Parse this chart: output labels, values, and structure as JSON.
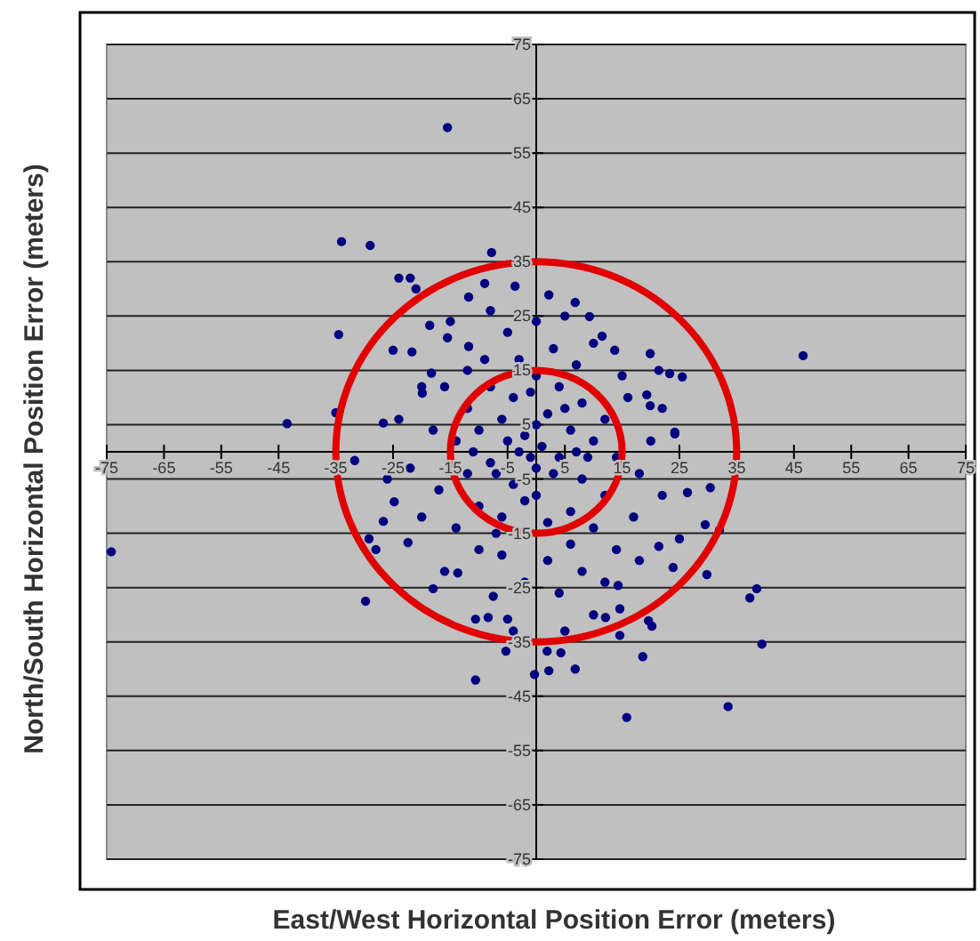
{
  "chart_data": {
    "type": "scatter",
    "xlabel": "East/West Horizontal Position Error (meters)",
    "ylabel": "North/South Horizontal Position Error (meters)",
    "xlim": [
      -75,
      75
    ],
    "ylim": [
      -75,
      75
    ],
    "xticks": [
      -75,
      -65,
      -55,
      -45,
      -35,
      -25,
      -15,
      -5,
      5,
      15,
      25,
      35,
      45,
      55,
      65,
      75
    ],
    "yticks": [
      -75,
      -65,
      -55,
      -45,
      -35,
      -25,
      -15,
      -5,
      5,
      15,
      25,
      35,
      45,
      55,
      65,
      75
    ],
    "grid": "y",
    "series": [
      {
        "color": "#000080",
        "marker": "circle",
        "x": [
          -15.5,
          -34,
          -29,
          -24,
          -22,
          -21,
          -9,
          -7.8,
          -3.7,
          -11.8,
          -18.6,
          -34.5,
          -25,
          -21.7,
          -15.5,
          -11.8,
          -43.5,
          -35,
          -26.7,
          -18.3,
          -19.9,
          46.6,
          2.2,
          6.8,
          9.3,
          19.9,
          21.4,
          23.3,
          25.5,
          19.3,
          19.9,
          24.2,
          13.7,
          11.5,
          -74.2,
          -29.8,
          -10.6,
          -5.3,
          -0.3,
          -31.7,
          -26.7,
          -29.2,
          -24.8,
          -18,
          -10.6,
          -22.4,
          -8.4,
          -5,
          -13.7,
          -7.5,
          15.8,
          33.5,
          39.4,
          37.3,
          38.5,
          29.8,
          18.6,
          6.8,
          2.2,
          14.6,
          19.6,
          20.2,
          23.9,
          29.5,
          32,
          30.4,
          26.4,
          24.2,
          14.6,
          12.1,
          1.9,
          4.3,
          21.4,
          14.3,
          -12,
          -8,
          -4,
          0,
          4,
          8,
          12,
          -14,
          -10,
          -6,
          -2,
          2,
          6,
          10,
          14,
          -12,
          -8,
          -4,
          0,
          4,
          8,
          12,
          -10,
          -6,
          -2,
          2,
          6,
          10,
          -3,
          1,
          -1,
          3,
          -5,
          5,
          -7,
          7,
          0,
          0,
          -3,
          3,
          -9,
          7,
          -16,
          16,
          -18,
          18,
          -17,
          17,
          -14,
          14,
          -6,
          2,
          8,
          12,
          4,
          -2,
          18,
          -10,
          -20,
          -22,
          -24,
          -20,
          -12,
          10,
          -5,
          0,
          5,
          -8,
          22,
          20,
          22,
          -26,
          -28,
          -16,
          10,
          5,
          -4,
          25,
          -15,
          15,
          -11,
          9,
          -1,
          6,
          -7
        ],
        "values": [
          59.7,
          38.7,
          38,
          32,
          32,
          30,
          31,
          36.7,
          30.5,
          28.5,
          23.3,
          21.6,
          18.7,
          18.4,
          21,
          19.4,
          5.2,
          7.2,
          5.3,
          14.5,
          10.8,
          17.7,
          28.9,
          27.5,
          24.9,
          18.1,
          15,
          14.4,
          13.8,
          10.5,
          8.5,
          3.3,
          18.7,
          21.3,
          -18.4,
          -27.5,
          -42,
          -36.7,
          -41,
          -1.6,
          -12.8,
          -16,
          -9.2,
          -25.2,
          -30.8,
          -16.7,
          -30.5,
          -30.8,
          -22.3,
          -26.6,
          -48.9,
          -46.9,
          -35.4,
          -26.9,
          -25.2,
          -22.6,
          -37.7,
          -40,
          -40.3,
          -33.8,
          -31.1,
          -32.1,
          -21.3,
          -13.4,
          -14.4,
          -6.6,
          -7.5,
          3.6,
          -28.9,
          -30.5,
          -36.7,
          -37,
          -17.4,
          -24.6,
          8,
          12,
          10,
          14,
          12,
          9,
          6,
          2,
          4,
          6,
          3,
          7,
          4,
          2,
          -1,
          -4,
          -2,
          -6,
          -3,
          -1,
          -5,
          -8,
          -10,
          -12,
          -9,
          -13,
          -11,
          -14,
          0,
          1,
          -1,
          -4,
          2,
          8,
          -4,
          0,
          5,
          -8,
          17,
          19,
          17,
          16,
          12,
          10,
          4,
          -4,
          -7,
          -12,
          -14,
          -18,
          -19,
          -20,
          -22,
          -24,
          -26,
          -24,
          -20,
          -18,
          -12,
          -3,
          6,
          12,
          15,
          20,
          22,
          24,
          25,
          26,
          -8,
          2,
          8,
          -5,
          -18,
          -22,
          -30,
          -33,
          -33,
          -16,
          24,
          14,
          0,
          -1,
          11,
          -17,
          -15
        ]
      }
    ]
  }
}
